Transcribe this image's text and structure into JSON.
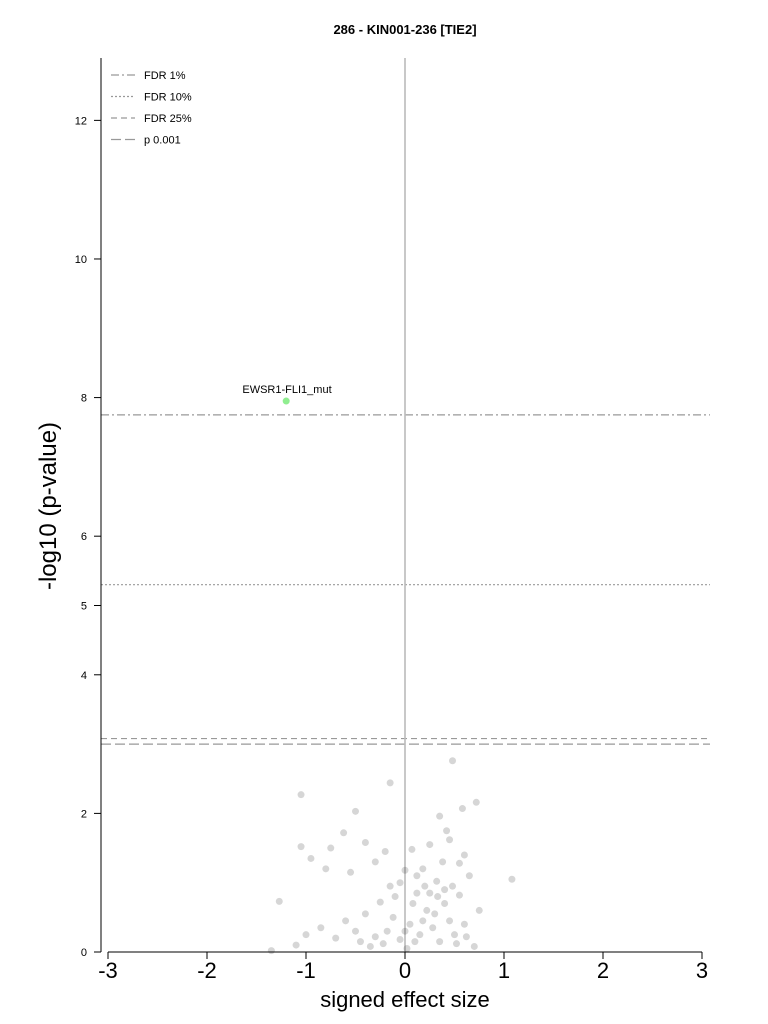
{
  "chart_data": {
    "type": "scatter",
    "title": "286 - KIN001-236 [TIE2]",
    "xlabel": "signed effect size",
    "ylabel": "-log10 (p-value)",
    "xlim": [
      -3,
      3
    ],
    "ylim": [
      0,
      12.9
    ],
    "x_ticks": [
      "-3",
      "-2",
      "-1",
      "0",
      "1",
      "2",
      "3"
    ],
    "y_ticks": [
      "0",
      "2",
      "4",
      "5",
      "6",
      "8",
      "10",
      "12"
    ],
    "x_tick_values": [
      -3,
      -2,
      -1,
      0,
      1,
      2,
      3
    ],
    "y_tick_values": [
      0,
      2,
      4,
      5,
      6,
      8,
      10,
      12
    ],
    "legend_position": "top-left",
    "legend": [
      {
        "label": "FDR 1%",
        "style": "dashdot"
      },
      {
        "label": "FDR 10%",
        "style": "dotted"
      },
      {
        "label": "FDR 25%",
        "style": "dashed"
      },
      {
        "label": "p 0.001",
        "style": "longdash"
      }
    ],
    "threshold_lines": [
      {
        "name": "FDR 1%",
        "y": 7.75
      },
      {
        "name": "FDR 10%",
        "y": 5.3
      },
      {
        "name": "FDR 25%",
        "y": 3.08
      },
      {
        "name": "p 0.001",
        "y": 3.0
      }
    ],
    "highlight": {
      "label": "EWSR1-FLI1_mut",
      "x": -1.2,
      "y": 7.95,
      "color": "#90ee90"
    },
    "points_color": "#000000",
    "points": [
      [
        -1.05,
        2.27
      ],
      [
        -0.15,
        2.44
      ],
      [
        0.48,
        2.76
      ],
      [
        0.72,
        2.16
      ],
      [
        0.58,
        2.07
      ],
      [
        -0.5,
        2.03
      ],
      [
        0.35,
        1.96
      ],
      [
        0.42,
        1.75
      ],
      [
        0.45,
        1.62
      ],
      [
        0.07,
        1.48
      ],
      [
        -0.62,
        1.72
      ],
      [
        -0.4,
        1.58
      ],
      [
        0.25,
        1.55
      ],
      [
        -0.2,
        1.45
      ],
      [
        -1.05,
        1.52
      ],
      [
        -0.95,
        1.35
      ],
      [
        0.6,
        1.4
      ],
      [
        -0.75,
        1.5
      ],
      [
        1.08,
        1.05
      ],
      [
        -1.27,
        0.73
      ],
      [
        -0.3,
        1.3
      ],
      [
        -0.8,
        1.2
      ],
      [
        -0.55,
        1.15
      ],
      [
        0.55,
        1.28
      ],
      [
        0.65,
        1.1
      ],
      [
        0.38,
        1.3
      ],
      [
        0.32,
        1.02
      ],
      [
        0.2,
        0.95
      ],
      [
        0.12,
        0.85
      ],
      [
        -0.1,
        0.8
      ],
      [
        -0.25,
        0.72
      ],
      [
        -0.4,
        0.55
      ],
      [
        -0.6,
        0.45
      ],
      [
        -0.85,
        0.35
      ],
      [
        -1.0,
        0.25
      ],
      [
        -1.1,
        0.1
      ],
      [
        -1.35,
        0.02
      ],
      [
        -0.7,
        0.2
      ],
      [
        -0.5,
        0.3
      ],
      [
        0.75,
        0.6
      ],
      [
        0.6,
        0.4
      ],
      [
        0.5,
        0.25
      ],
      [
        0.4,
        0.7
      ],
      [
        0.3,
        0.55
      ],
      [
        0.28,
        0.35
      ],
      [
        0.22,
        0.6
      ],
      [
        0.18,
        0.45
      ],
      [
        0.15,
        0.25
      ],
      [
        0.1,
        0.15
      ],
      [
        0.05,
        0.4
      ],
      [
        0.0,
        0.3
      ],
      [
        -0.05,
        0.18
      ],
      [
        -0.12,
        0.5
      ],
      [
        -0.18,
        0.3
      ],
      [
        -0.22,
        0.12
      ],
      [
        -0.3,
        0.22
      ],
      [
        -0.35,
        0.08
      ],
      [
        -0.45,
        0.15
      ],
      [
        0.35,
        0.15
      ],
      [
        0.45,
        0.45
      ],
      [
        0.52,
        0.12
      ],
      [
        0.62,
        0.22
      ],
      [
        0.7,
        0.08
      ],
      [
        0.02,
        0.05
      ],
      [
        0.08,
        0.7
      ],
      [
        0.25,
        0.85
      ],
      [
        0.33,
        0.8
      ],
      [
        0.4,
        0.9
      ],
      [
        0.48,
        0.95
      ],
      [
        0.55,
        0.82
      ],
      [
        0.12,
        1.1
      ],
      [
        0.18,
        1.2
      ],
      [
        -0.05,
        1.0
      ],
      [
        -0.15,
        0.95
      ],
      [
        0.0,
        1.18
      ]
    ]
  }
}
